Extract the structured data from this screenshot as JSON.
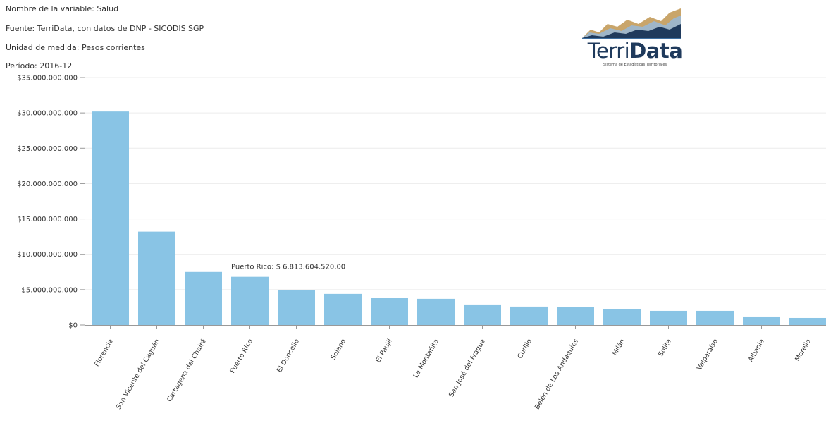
{
  "header": {
    "variable": "Nombre de la variable: Salud",
    "source": "Fuente: TerriData, con datos de DNP - SICODIS SGP",
    "unit": "Unidad de medida: Pesos corrientes",
    "period": "Período: 2016-12"
  },
  "logo": {
    "word_light": "Terri",
    "word_bold": "Data",
    "subtitle": "Sistema de Estadísticas Territoriales"
  },
  "colors": {
    "bar": "#89c4e5",
    "grid": "#ececec",
    "axis": "#999999"
  },
  "tooltip": {
    "category": "Puerto Rico",
    "text": "Puerto Rico: $ 6.813.604.520,00"
  },
  "chart_data": {
    "type": "bar",
    "title": "",
    "xlabel": "",
    "ylabel": "",
    "ylim": [
      0,
      35000000000
    ],
    "yticks": [
      0,
      5000000000,
      10000000000,
      15000000000,
      20000000000,
      25000000000,
      30000000000,
      35000000000
    ],
    "ytick_labels": [
      "$0",
      "$5.000.000.000",
      "$10.000.000.000",
      "$15.000.000.000",
      "$20.000.000.000",
      "$25.000.000.000",
      "$30.000.000.000",
      "$35.000.000.000"
    ],
    "grid": true,
    "categories": [
      "Florencia",
      "San Vicente del Caguán",
      "Cartagena del Chairá",
      "Puerto Rico",
      "El Doncello",
      "Solano",
      "El Paujil",
      "La Montañita",
      "San José del Fragua",
      "Curillo",
      "Belén de Los Andaquíes",
      "Milán",
      "Solita",
      "Valparaíso",
      "Albania",
      "Morelia"
    ],
    "values": [
      30200000000,
      13200000000,
      7500000000,
      6813604520,
      4950000000,
      4400000000,
      3800000000,
      3700000000,
      2900000000,
      2600000000,
      2500000000,
      2200000000,
      2000000000,
      2000000000,
      1200000000,
      1000000000
    ]
  }
}
